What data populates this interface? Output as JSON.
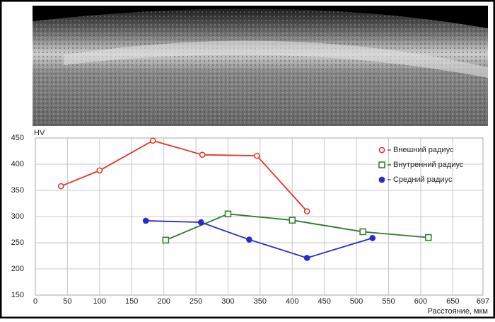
{
  "chart_data": {
    "type": "line",
    "y_label": "HV",
    "x_label": "Расстояние, мкм",
    "xlim": [
      0,
      697
    ],
    "xticks": [
      0,
      50,
      100,
      150,
      200,
      250,
      300,
      350,
      400,
      450,
      500,
      550,
      600,
      650,
      697
    ],
    "ylim": [
      150,
      450
    ],
    "yticks": [
      150,
      200,
      250,
      300,
      350,
      400,
      450
    ],
    "grid": true,
    "legend": "upper right",
    "series": [
      {
        "name": "Внешний радиус",
        "color": "#e8322b",
        "marker": "circle-open",
        "x": [
          40,
          100,
          183,
          260,
          345,
          423
        ],
        "values": [
          358,
          388,
          445,
          418,
          416,
          310
        ]
      },
      {
        "name": "Внутренний радиус",
        "color": "#2b7a2b",
        "marker": "square-open",
        "x": [
          203,
          300,
          400,
          510,
          612
        ],
        "values": [
          255,
          305,
          293,
          271,
          260
        ]
      },
      {
        "name": "Средний радиус",
        "color": "#2a2ad0",
        "marker": "circle-filled",
        "x": [
          172,
          258,
          333,
          423,
          525
        ],
        "values": [
          292,
          289,
          256,
          221,
          259
        ]
      }
    ]
  }
}
